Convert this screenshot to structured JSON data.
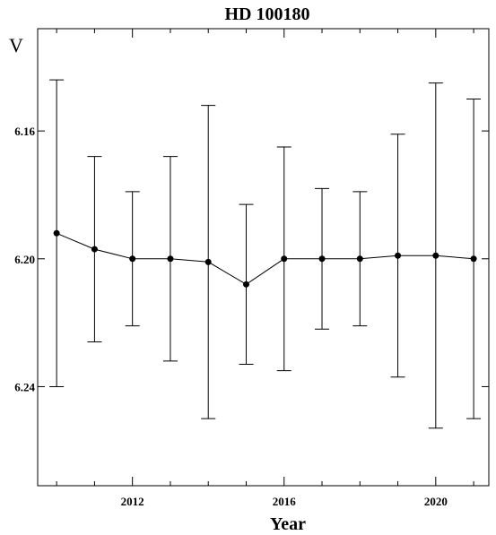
{
  "chart_data": {
    "type": "scatter",
    "title": "HD 100180",
    "xlabel": "Year",
    "ylabel": "V",
    "x_ticks": [
      2012,
      2016,
      2020
    ],
    "x_tick_labels": [
      "2012",
      "2016",
      "2020"
    ],
    "y_ticks": [
      6.16,
      6.2,
      6.24
    ],
    "y_tick_labels": [
      "6.16",
      "6.20",
      "6.24"
    ],
    "xlim": [
      2009.5,
      2021.4
    ],
    "ylim": [
      6.128,
      6.271
    ],
    "y_inverted": true,
    "grid": false,
    "series": [
      {
        "x": [
          2010,
          2011,
          2012,
          2013,
          2014,
          2015,
          2016,
          2017,
          2018,
          2019,
          2020,
          2021
        ],
        "y": [
          6.192,
          6.197,
          6.2,
          6.2,
          6.201,
          6.208,
          6.2,
          6.2,
          6.2,
          6.199,
          6.199,
          6.2
        ],
        "yerr_low": [
          6.144,
          6.168,
          6.179,
          6.168,
          6.152,
          6.183,
          6.165,
          6.178,
          6.179,
          6.161,
          6.145,
          6.15
        ],
        "yerr_high": [
          6.24,
          6.226,
          6.221,
          6.232,
          6.25,
          6.233,
          6.235,
          6.222,
          6.221,
          6.237,
          6.253,
          6.25
        ]
      }
    ]
  }
}
